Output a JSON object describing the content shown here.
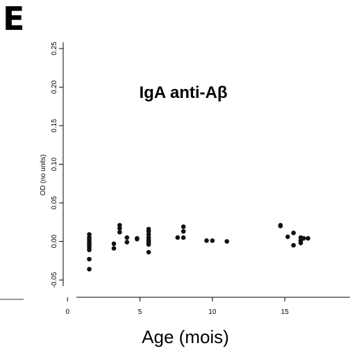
{
  "figure": {
    "panel_letter": "E"
  },
  "chart_data": {
    "type": "scatter",
    "title": "IgA anti-Aβ",
    "xlabel": "Age (mois)",
    "ylabel": "OD (no units)",
    "xlim": [
      -0.3,
      19.5
    ],
    "ylim": [
      -0.058,
      0.258
    ],
    "x_ticks": [
      0,
      5,
      10,
      15
    ],
    "x_tick_labels": [
      "0",
      "5",
      "10",
      "15"
    ],
    "y_ticks": [
      -0.05,
      0.0,
      0.05,
      0.1,
      0.15,
      0.2,
      0.25
    ],
    "y_tick_labels": [
      "-0.05",
      "0.00",
      "0.05",
      "0.10",
      "0.15",
      "0.20",
      "0.25"
    ],
    "grid": false,
    "legend": "none",
    "marker_color": "#111111",
    "points": [
      {
        "x": 1.5,
        "y": 0.009
      },
      {
        "x": 1.5,
        "y": 0.005
      },
      {
        "x": 1.5,
        "y": 0.002
      },
      {
        "x": 1.5,
        "y": -0.001
      },
      {
        "x": 1.5,
        "y": -0.003
      },
      {
        "x": 1.5,
        "y": -0.005
      },
      {
        "x": 1.5,
        "y": -0.008
      },
      {
        "x": 1.5,
        "y": -0.011
      },
      {
        "x": 1.5,
        "y": -0.023
      },
      {
        "x": 1.5,
        "y": -0.036
      },
      {
        "x": 3.2,
        "y": -0.003
      },
      {
        "x": 3.2,
        "y": -0.009
      },
      {
        "x": 3.6,
        "y": 0.021
      },
      {
        "x": 3.6,
        "y": 0.017
      },
      {
        "x": 3.6,
        "y": 0.012
      },
      {
        "x": 4.1,
        "y": 0.005
      },
      {
        "x": 4.1,
        "y": -0.001
      },
      {
        "x": 4.8,
        "y": 0.004
      },
      {
        "x": 4.8,
        "y": 0.003
      },
      {
        "x": 5.6,
        "y": 0.016
      },
      {
        "x": 5.6,
        "y": 0.013
      },
      {
        "x": 5.6,
        "y": 0.009
      },
      {
        "x": 5.6,
        "y": 0.005
      },
      {
        "x": 5.6,
        "y": 0.002
      },
      {
        "x": 5.6,
        "y": 0.0
      },
      {
        "x": 5.6,
        "y": -0.002
      },
      {
        "x": 5.6,
        "y": -0.004
      },
      {
        "x": 5.6,
        "y": -0.014
      },
      {
        "x": 7.6,
        "y": 0.005
      },
      {
        "x": 8.0,
        "y": 0.019
      },
      {
        "x": 8.0,
        "y": 0.013
      },
      {
        "x": 8.0,
        "y": 0.005
      },
      {
        "x": 9.6,
        "y": 0.001
      },
      {
        "x": 10.0,
        "y": 0.001
      },
      {
        "x": 11.0,
        "y": 0.0
      },
      {
        "x": 14.7,
        "y": 0.021
      },
      {
        "x": 14.7,
        "y": 0.02
      },
      {
        "x": 15.2,
        "y": 0.006
      },
      {
        "x": 15.6,
        "y": 0.011
      },
      {
        "x": 15.6,
        "y": -0.005
      },
      {
        "x": 16.1,
        "y": 0.005
      },
      {
        "x": 16.1,
        "y": 0.001
      },
      {
        "x": 16.1,
        "y": -0.002
      },
      {
        "x": 16.3,
        "y": 0.004
      },
      {
        "x": 16.6,
        "y": 0.004
      }
    ]
  }
}
